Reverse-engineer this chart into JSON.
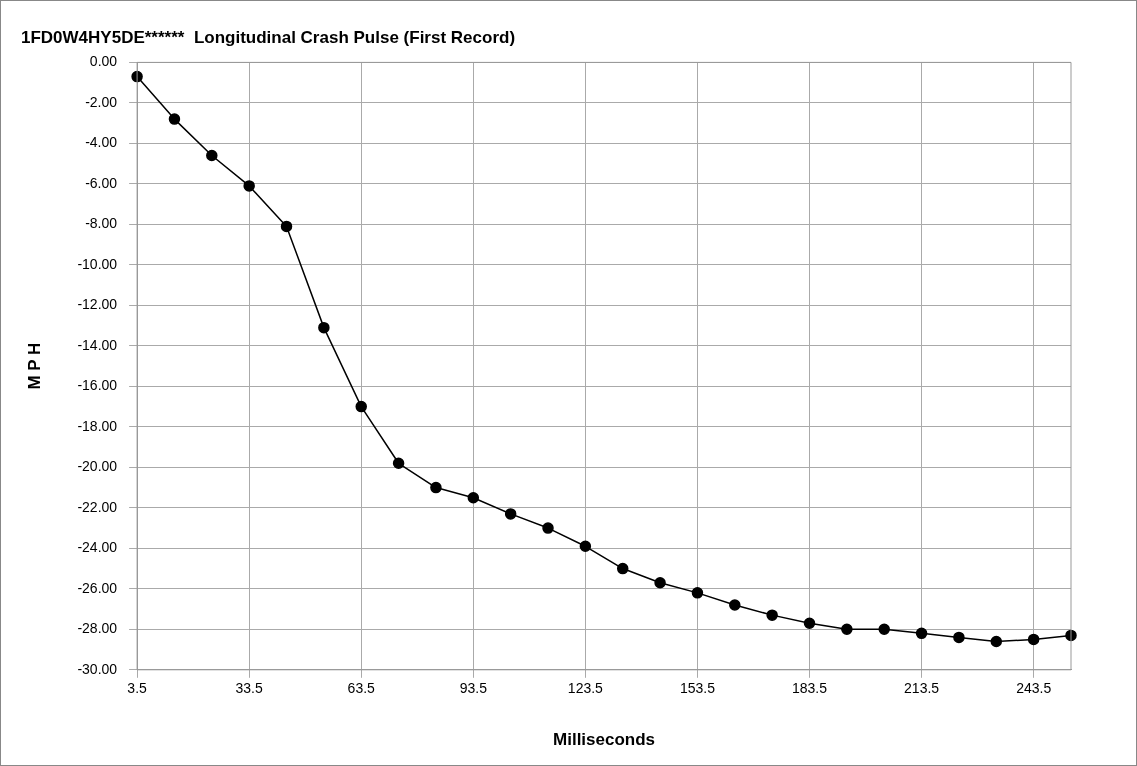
{
  "chart_data": {
    "type": "line",
    "title": "1FD0W4HY5DE******  Longitudinal Crash Pulse (First Record)",
    "xlabel": "Milliseconds",
    "ylabel": "M P H",
    "categories": [
      "3.5",
      null,
      null,
      "33.5",
      null,
      null,
      "63.5",
      null,
      null,
      "93.5",
      null,
      null,
      "123.5",
      null,
      null,
      "153.5",
      null,
      null,
      "183.5",
      null,
      null,
      "213.5",
      null,
      null,
      "243.5",
      null
    ],
    "series": [
      {
        "color": "#000000",
        "values": [
          -0.7,
          -2.8,
          -4.6,
          -6.1,
          -8.1,
          -13.1,
          -17.0,
          -19.8,
          -21.0,
          -21.5,
          -22.3,
          -23.0,
          -23.9,
          -25.0,
          -25.7,
          -26.2,
          -26.8,
          -27.3,
          -27.7,
          -28.0,
          -28.0,
          -28.2,
          -28.4,
          -28.6,
          -28.5,
          -28.3
        ]
      }
    ],
    "ylim": [
      -30,
      0
    ],
    "yticks": [
      {
        "value": 0,
        "label": "0.00"
      },
      {
        "value": -2,
        "label": "-2.00"
      },
      {
        "value": -4,
        "label": "-4.00"
      },
      {
        "value": -6,
        "label": "-6.00"
      },
      {
        "value": -8,
        "label": "-8.00"
      },
      {
        "value": -10,
        "label": "-10.00"
      },
      {
        "value": -12,
        "label": "-12.00"
      },
      {
        "value": -14,
        "label": "-14.00"
      },
      {
        "value": -16,
        "label": "-16.00"
      },
      {
        "value": -18,
        "label": "-18.00"
      },
      {
        "value": -20,
        "label": "-20.00"
      },
      {
        "value": -22,
        "label": "-22.00"
      },
      {
        "value": -24,
        "label": "-24.00"
      },
      {
        "value": -26,
        "label": "-26.00"
      },
      {
        "value": -28,
        "label": "-28.00"
      },
      {
        "value": -30,
        "label": "-30.00"
      }
    ],
    "grid": true,
    "legend": false,
    "marker": "circle",
    "line_style": "solid"
  }
}
